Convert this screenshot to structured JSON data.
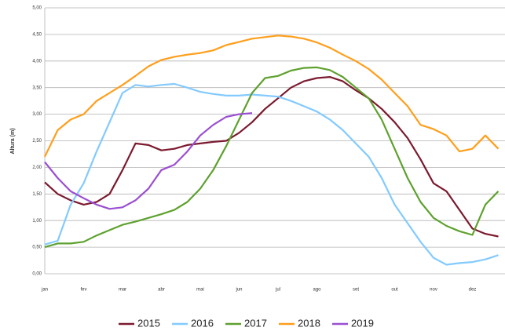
{
  "chart_data": {
    "type": "line",
    "y_label": "Altura (m)",
    "categories": [
      "jan",
      null,
      null,
      "fev",
      null,
      null,
      "mar",
      null,
      null,
      "abr",
      null,
      null,
      "mai",
      null,
      null,
      "jun",
      null,
      null,
      "jul",
      null,
      null,
      "ago",
      null,
      null,
      "set",
      null,
      null,
      "out",
      null,
      null,
      "nov",
      null,
      null,
      "dez",
      null,
      null
    ],
    "series": [
      {
        "name": "2015",
        "color": "#7b1a2e",
        "values": [
          1.72,
          1.5,
          1.38,
          1.3,
          1.35,
          1.5,
          1.95,
          2.45,
          2.42,
          2.32,
          2.35,
          2.42,
          2.45,
          2.48,
          2.5,
          2.65,
          2.85,
          3.1,
          3.3,
          3.5,
          3.62,
          3.68,
          3.7,
          3.62,
          3.45,
          3.3,
          3.1,
          2.85,
          2.55,
          2.15,
          1.7,
          1.55,
          1.2,
          0.85,
          0.75,
          0.7
        ]
      },
      {
        "name": "2016",
        "color": "#83caff",
        "values": [
          0.55,
          0.62,
          1.3,
          1.7,
          2.3,
          2.85,
          3.4,
          3.55,
          3.52,
          3.55,
          3.57,
          3.5,
          3.42,
          3.38,
          3.35,
          3.35,
          3.37,
          3.35,
          3.33,
          3.25,
          3.15,
          3.05,
          2.9,
          2.7,
          2.45,
          2.2,
          1.8,
          1.3,
          0.95,
          0.6,
          0.3,
          0.17,
          0.2,
          0.22,
          0.27,
          0.35
        ]
      },
      {
        "name": "2017",
        "color": "#5ea12e",
        "values": [
          0.5,
          0.57,
          0.57,
          0.6,
          0.72,
          0.82,
          0.92,
          0.98,
          1.05,
          1.12,
          1.2,
          1.35,
          1.6,
          1.95,
          2.4,
          2.9,
          3.4,
          3.68,
          3.72,
          3.82,
          3.87,
          3.88,
          3.83,
          3.7,
          3.5,
          3.3,
          2.9,
          2.35,
          1.8,
          1.35,
          1.05,
          0.9,
          0.8,
          0.73,
          1.3,
          1.55
        ]
      },
      {
        "name": "2018",
        "color": "#ff9e1b",
        "values": [
          2.2,
          2.7,
          2.9,
          3.0,
          3.25,
          3.4,
          3.55,
          3.72,
          3.9,
          4.02,
          4.08,
          4.12,
          4.15,
          4.2,
          4.3,
          4.36,
          4.42,
          4.45,
          4.48,
          4.46,
          4.42,
          4.35,
          4.25,
          4.12,
          4.0,
          3.85,
          3.65,
          3.4,
          3.15,
          2.8,
          2.72,
          2.6,
          2.3,
          2.35,
          2.6,
          2.35
        ]
      },
      {
        "name": "2019",
        "color": "#9a4ed1",
        "values": [
          2.1,
          1.8,
          1.55,
          1.42,
          1.3,
          1.22,
          1.25,
          1.38,
          1.6,
          1.95,
          2.05,
          2.3,
          2.6,
          2.8,
          2.95,
          3.0,
          3.02,
          null,
          null,
          null,
          null,
          null,
          null,
          null,
          null,
          null,
          null,
          null,
          null,
          null,
          null,
          null,
          null,
          null,
          null,
          null
        ]
      }
    ],
    "ylim": [
      0,
      5
    ],
    "yticks": [
      {
        "value": 0,
        "label": "0,00"
      },
      {
        "value": 0.5,
        "label": "0,50"
      },
      {
        "value": 1,
        "label": "1,00"
      },
      {
        "value": 1.5,
        "label": "1,50"
      },
      {
        "value": 2,
        "label": "2,00"
      },
      {
        "value": 2.5,
        "label": "2,50"
      },
      {
        "value": 3,
        "label": "3,00"
      },
      {
        "value": 3.5,
        "label": "3,50"
      },
      {
        "value": 4,
        "label": "4,00"
      },
      {
        "value": 4.5,
        "label": "4,50"
      },
      {
        "value": 5,
        "label": "5,00"
      }
    ],
    "grid": true,
    "legend": "bottom"
  }
}
